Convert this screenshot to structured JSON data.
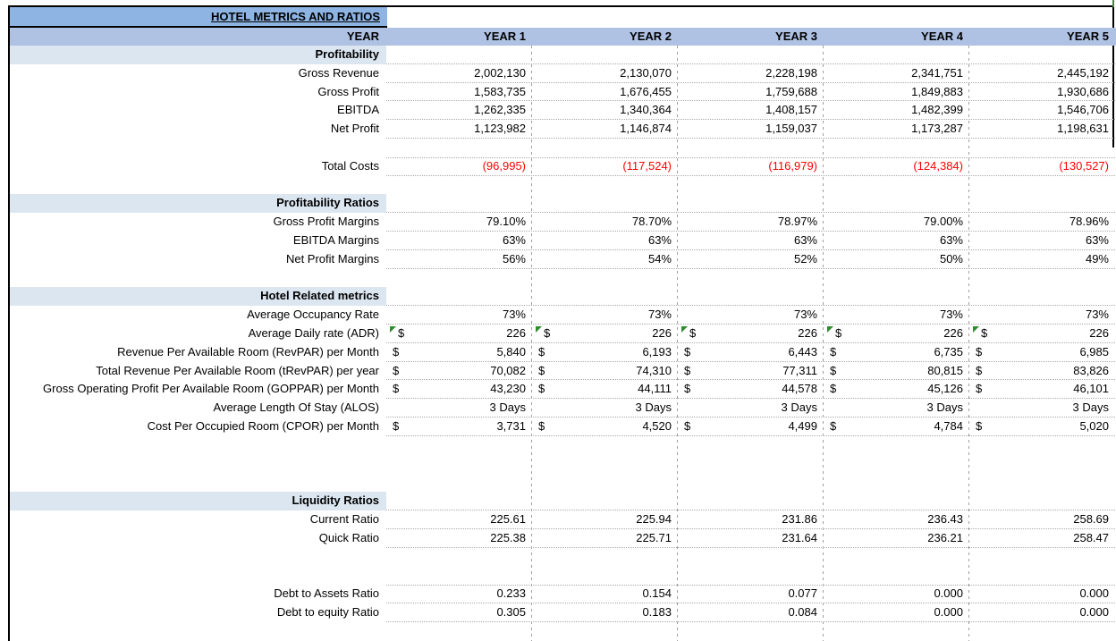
{
  "title": "HOTEL METRICS AND RATIOS",
  "columns": {
    "row_label": "YEAR",
    "years": [
      "YEAR 1",
      "YEAR 2",
      "YEAR 3",
      "YEAR 4",
      "YEAR 5"
    ]
  },
  "currency_symbol": "$",
  "colors": {
    "title_band": "#8DB4E2",
    "year_band": "#AFC2E4",
    "section_band": "#DCE6F1",
    "negative_value": "#FF0000",
    "error_indicator": "#2E8B2E",
    "frame_border": "#000000",
    "green_tick": "#3F8C3F"
  },
  "rows": [
    {
      "type": "section",
      "label": "Profitability"
    },
    {
      "type": "data",
      "label": "Gross Revenue",
      "values": [
        "2,002,130",
        "2,130,070",
        "2,228,198",
        "2,341,751",
        "2,445,192"
      ]
    },
    {
      "type": "data",
      "label": "Gross Profit",
      "values": [
        "1,583,735",
        "1,676,455",
        "1,759,688",
        "1,849,883",
        "1,930,686"
      ]
    },
    {
      "type": "data",
      "label": "EBITDA",
      "values": [
        "1,262,335",
        "1,340,364",
        "1,408,157",
        "1,482,399",
        "1,546,706"
      ]
    },
    {
      "type": "data",
      "label": "Net Profit",
      "values": [
        "1,123,982",
        "1,146,874",
        "1,159,037",
        "1,173,287",
        "1,198,631"
      ]
    },
    {
      "type": "blank"
    },
    {
      "type": "data",
      "label": "Total Costs",
      "values": [
        "(96,995)",
        "(117,524)",
        "(116,979)",
        "(124,384)",
        "(130,527)"
      ],
      "negative": true,
      "dot_top": true
    },
    {
      "type": "blank"
    },
    {
      "type": "section",
      "label": "Profitability Ratios"
    },
    {
      "type": "data",
      "label": "Gross Profit Margins",
      "values": [
        "79.10%",
        "78.70%",
        "78.97%",
        "79.00%",
        "78.96%"
      ]
    },
    {
      "type": "data",
      "label": "EBITDA Margins",
      "values": [
        "63%",
        "63%",
        "63%",
        "63%",
        "63%"
      ]
    },
    {
      "type": "data",
      "label": "Net Profit Margins",
      "values": [
        "56%",
        "54%",
        "52%",
        "50%",
        "49%"
      ]
    },
    {
      "type": "blank"
    },
    {
      "type": "section",
      "label": "Hotel Related metrics"
    },
    {
      "type": "data",
      "label": "Average Occupancy Rate",
      "values": [
        "73%",
        "73%",
        "73%",
        "73%",
        "73%"
      ]
    },
    {
      "type": "data",
      "label": "Average Daily rate (ADR)",
      "values": [
        "226",
        "226",
        "226",
        "226",
        "226"
      ],
      "currency": true,
      "indicator": true
    },
    {
      "type": "data",
      "label": "Revenue Per Available Room (RevPAR) per Month",
      "values": [
        "5,840",
        "6,193",
        "6,443",
        "6,735",
        "6,985"
      ],
      "currency": true
    },
    {
      "type": "data",
      "label": "Total Revenue Per Available Room (tRevPAR) per year",
      "values": [
        "70,082",
        "74,310",
        "77,311",
        "80,815",
        "83,826"
      ],
      "currency": true
    },
    {
      "type": "data",
      "label": "Gross Operating Profit Per Available Room (GOPPAR) per Month",
      "values": [
        "43,230",
        "44,111",
        "44,578",
        "45,126",
        "46,101"
      ],
      "currency": true
    },
    {
      "type": "data",
      "label": "Average Length Of Stay (ALOS)",
      "values": [
        "3 Days",
        "3 Days",
        "3 Days",
        "3 Days",
        "3 Days"
      ]
    },
    {
      "type": "data",
      "label": "Cost Per Occupied Room (CPOR) per Month",
      "values": [
        "3,731",
        "4,520",
        "4,499",
        "4,784",
        "5,020"
      ],
      "currency": true
    },
    {
      "type": "blank"
    },
    {
      "type": "blank"
    },
    {
      "type": "blank"
    },
    {
      "type": "section",
      "label": "Liquidity Ratios"
    },
    {
      "type": "data",
      "label": "Current Ratio",
      "values": [
        "225.61",
        "225.94",
        "231.86",
        "236.43",
        "258.69"
      ]
    },
    {
      "type": "data",
      "label": "Quick Ratio",
      "values": [
        "225.38",
        "225.71",
        "231.64",
        "236.21",
        "258.47"
      ]
    },
    {
      "type": "blank"
    },
    {
      "type": "blank"
    },
    {
      "type": "data",
      "label": "Debt to Assets Ratio",
      "values": [
        "0.233",
        "0.154",
        "0.077",
        "0.000",
        "0.000"
      ],
      "dot_top": true
    },
    {
      "type": "data",
      "label": "Debt to equity Ratio",
      "values": [
        "0.305",
        "0.183",
        "0.084",
        "0.000",
        "0.000"
      ]
    },
    {
      "type": "blank"
    }
  ]
}
